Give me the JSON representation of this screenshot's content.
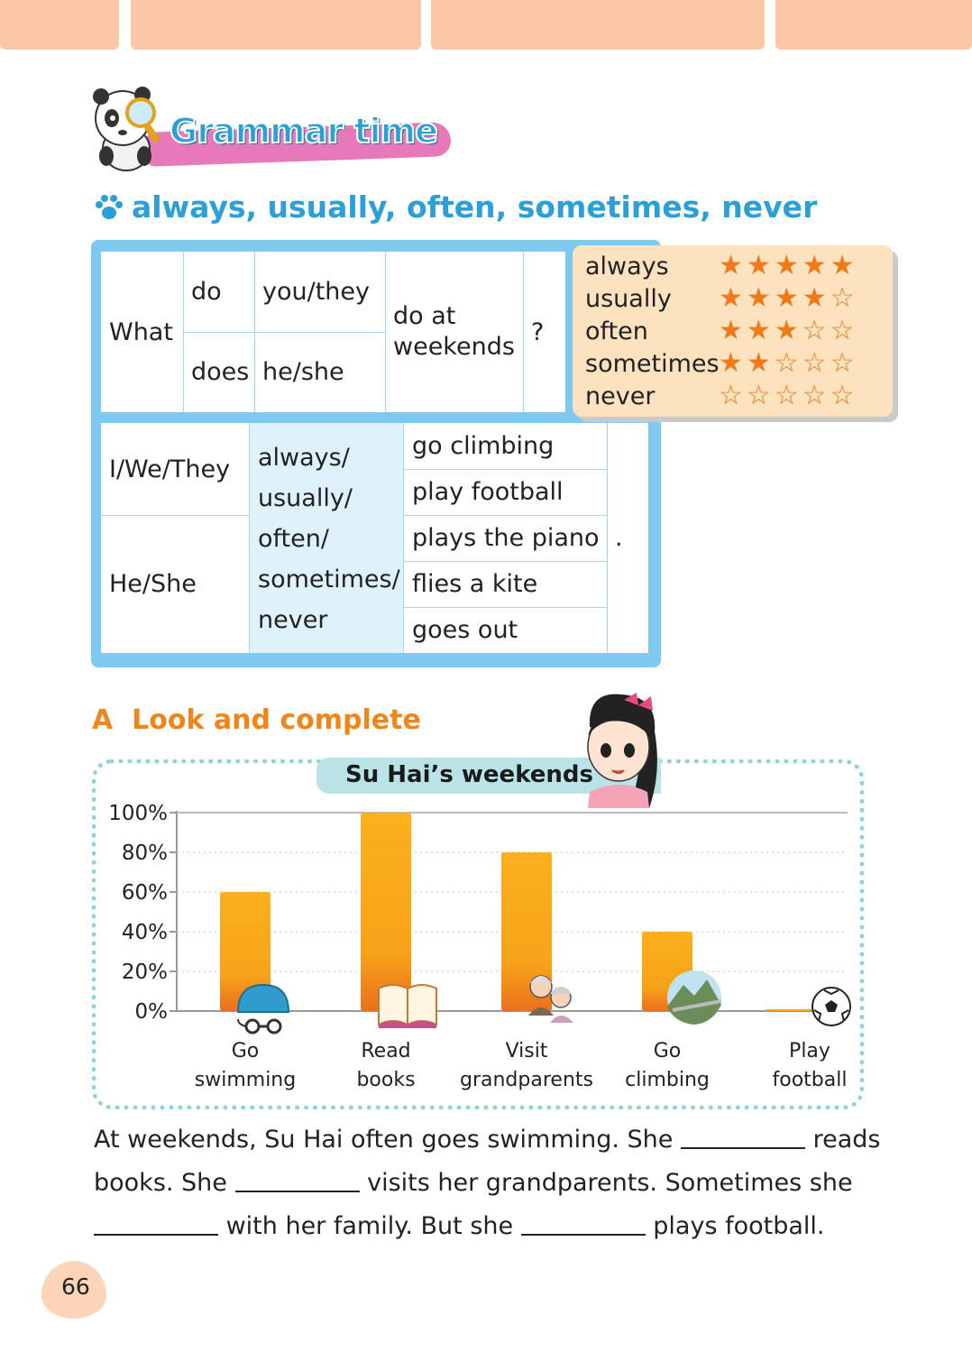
{
  "header": {
    "title": "Grammar time",
    "subtitle": "always, usually, often, sometimes, never"
  },
  "grammar_table_1": {
    "what": "What",
    "do": "do",
    "does": "does",
    "you_they": "you/they",
    "he_she": "he/she",
    "do_at_weekends_1": "do at",
    "do_at_weekends_2": "weekends",
    "question_mark": "?"
  },
  "grammar_table_2": {
    "subject_1": "I/We/They",
    "subject_2": "He/She",
    "adverbs": [
      "always/",
      "usually/",
      "often/",
      "sometimes/",
      "never"
    ],
    "activities": [
      "go climbing",
      "play football",
      "plays the piano",
      "flies a kite",
      "goes out"
    ],
    "full_stop": "."
  },
  "frequency_scale": [
    {
      "word": "always",
      "stars": 5
    },
    {
      "word": "usually",
      "stars": 4
    },
    {
      "word": "often",
      "stars": 3
    },
    {
      "word": "sometimes",
      "stars": 2
    },
    {
      "word": "never",
      "stars": 0
    }
  ],
  "section_a": {
    "letter": "A",
    "title": "Look and complete"
  },
  "chart_data": {
    "type": "bar",
    "title": "Su Hai’s weekends",
    "categories": [
      [
        "Go",
        "swimming"
      ],
      [
        "Read",
        "books"
      ],
      [
        "Visit",
        "grandparents"
      ],
      [
        "Go",
        "climbing"
      ],
      [
        "Play",
        "football"
      ]
    ],
    "values": [
      60,
      100,
      80,
      40,
      0
    ],
    "y_ticks": [
      "0%",
      "20%",
      "40%",
      "60%",
      "80%",
      "100%"
    ],
    "ylim": [
      0,
      100
    ],
    "grid": true,
    "bar_color_top": "#fbb01c",
    "bar_color_bottom": "#ec7a1c"
  },
  "exercise": {
    "line1_a": "At weekends, Su Hai often goes swimming. She",
    "line1_b": "reads",
    "line2_a": "books. She",
    "line2_b": "visits her grandparents. Sometimes she",
    "line3_a": "with her family. But she",
    "line3_b": "plays football."
  },
  "page_number": "66"
}
